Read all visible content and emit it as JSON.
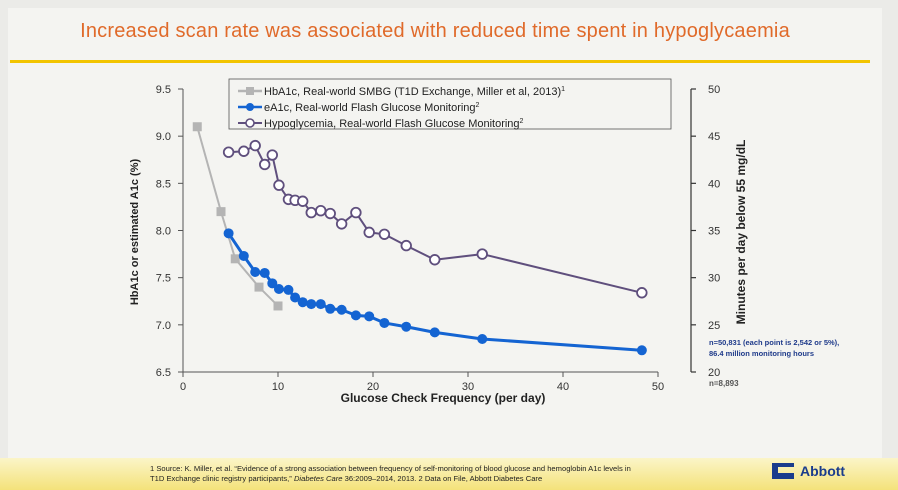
{
  "slide": {
    "title": "Increased scan rate was associated with reduced time spent in hypoglycaemia",
    "footnote_line1": "1 Source: K. Miller, et al. “Evidence of a strong association between frequency of self-monitoring of blood glucose and hemoglobin A1c levels in",
    "footnote_line2_a": "T1D Exchange clinic registry participants,”",
    "footnote_line2_b": "Diabetes Care",
    "footnote_line2_c": " 36:2009–2014, 2013. 2 Data on File, Abbott Diabetes Care",
    "logo_text": "Abbott",
    "colors": {
      "title": "#e06a2a",
      "rule": "#f2c400",
      "logo": "#1a3c8c"
    }
  },
  "chart_data": {
    "type": "line",
    "xlabel": "Glucose Check Frequency (per day)",
    "ylabel_left": "HbA1c or estimated A1c (%)",
    "ylabel_right": "Minutes per day below 55 mg/dL",
    "xlim": [
      0,
      50
    ],
    "x_ticks": [
      0,
      10,
      20,
      30,
      40,
      50
    ],
    "ylim_left": [
      6.5,
      9.5
    ],
    "y_ticks_left": [
      "6.5",
      "7.0",
      "7.5",
      "8.0",
      "8.5",
      "9.0",
      "9.5"
    ],
    "ylim_right": [
      20,
      50
    ],
    "y_ticks_right": [
      "20",
      "25",
      "30",
      "35",
      "40",
      "45",
      "50"
    ],
    "legend_position": "top",
    "annotation_1": "n=50,831 (each point is 2,542 or 5%),",
    "annotation_2": "86.4 million monitoring hours",
    "annotation_3": "n=8,893",
    "series": [
      {
        "name": "HbA1c, Real-world SMBG (T1D Exchange, Miller et al, 2013)",
        "sup": "1",
        "axis": "left",
        "color": "#b4b4b4",
        "marker": "square",
        "x": [
          1.5,
          4,
          5.5,
          8,
          10
        ],
        "y": [
          9.1,
          8.2,
          7.7,
          7.4,
          7.2
        ]
      },
      {
        "name": "eA1c, Real-world Flash Glucose Monitoring",
        "sup": "2",
        "axis": "left",
        "color": "#1464d2",
        "marker": "filled-circle",
        "x": [
          4.8,
          6.4,
          7.6,
          8.6,
          9.4,
          10.1,
          11.1,
          11.8,
          12.6,
          13.5,
          14.5,
          15.5,
          16.7,
          18.2,
          19.6,
          21.2,
          23.5,
          26.5,
          31.5,
          48.3
        ],
        "y": [
          7.97,
          7.73,
          7.56,
          7.55,
          7.44,
          7.38,
          7.37,
          7.29,
          7.24,
          7.22,
          7.22,
          7.17,
          7.16,
          7.1,
          7.09,
          7.02,
          6.98,
          6.92,
          6.85,
          6.73
        ]
      },
      {
        "name": "Hypoglycemia, Real-world Flash Glucose Monitoring",
        "sup": "2",
        "axis": "right",
        "color": "#5f4f7d",
        "marker": "open-circle",
        "x": [
          4.8,
          6.4,
          7.6,
          8.6,
          9.4,
          10.1,
          11.1,
          11.8,
          12.6,
          13.5,
          14.5,
          15.5,
          16.7,
          18.2,
          19.6,
          21.2,
          23.5,
          26.5,
          31.5,
          48.3
        ],
        "y": [
          43.3,
          43.4,
          44,
          42,
          43,
          39.8,
          38.3,
          38.2,
          38.1,
          36.9,
          37.1,
          36.8,
          35.7,
          36.9,
          34.8,
          34.6,
          33.4,
          31.9,
          32.5,
          28.4
        ]
      }
    ]
  }
}
